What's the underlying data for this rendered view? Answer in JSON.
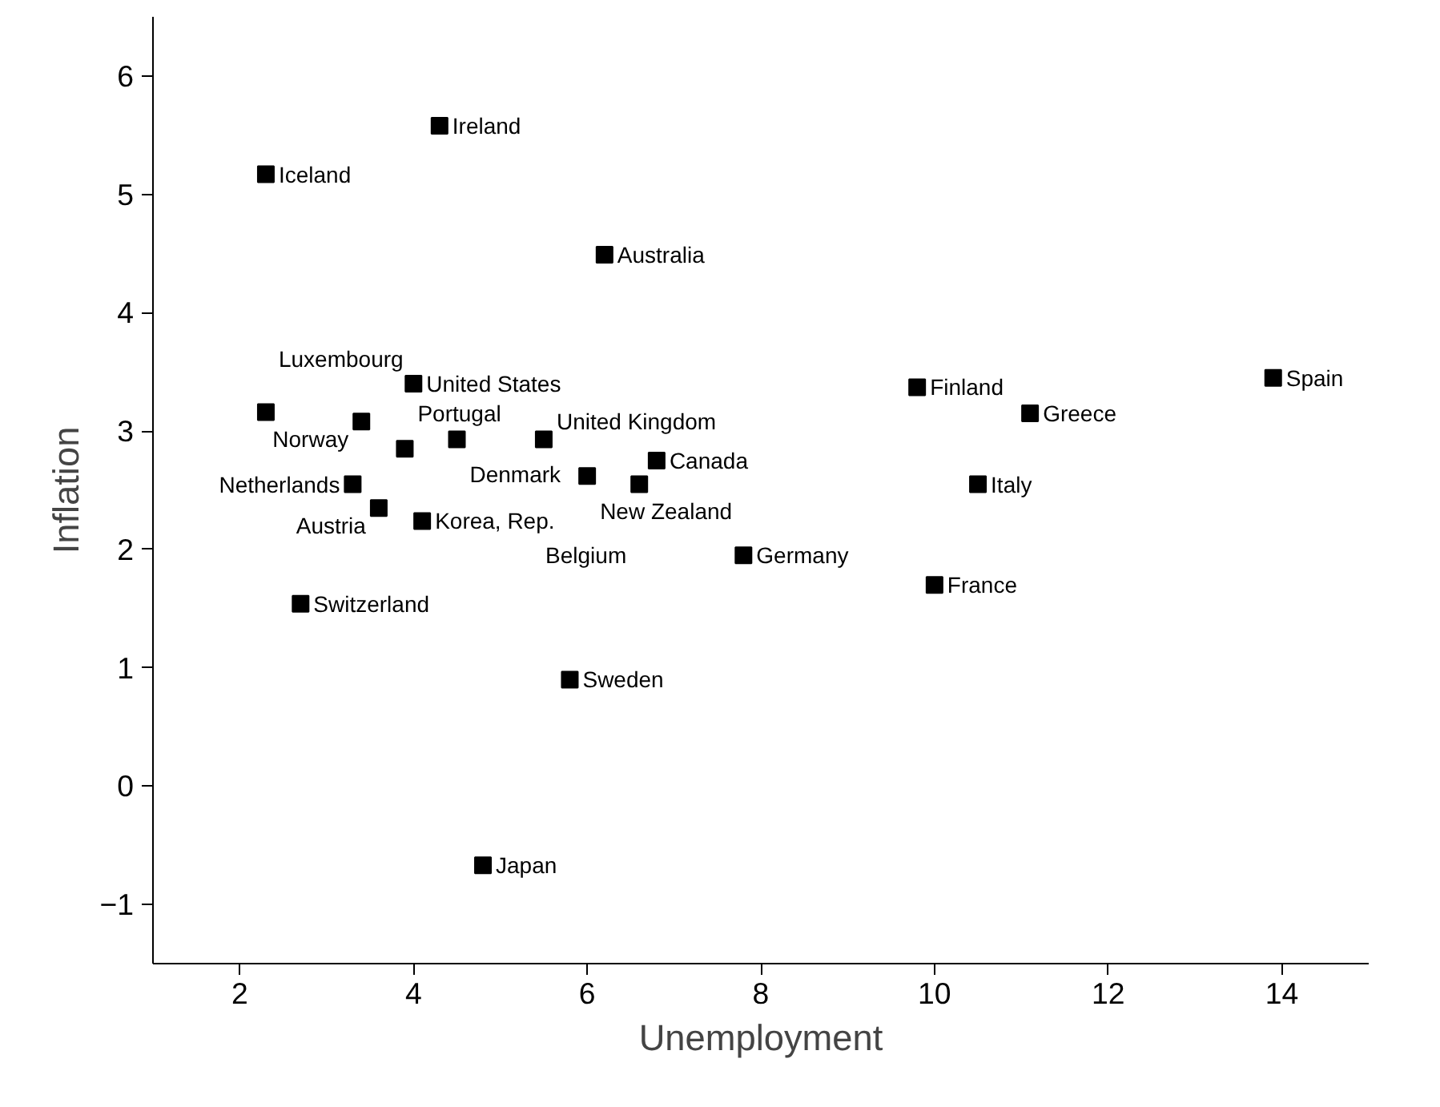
{
  "chart_data": {
    "type": "scatter",
    "xlabel": "Unemployment",
    "ylabel": "Inflation",
    "x": [
      4.3,
      2.3,
      6.2,
      4.0,
      2.3,
      3.4,
      4.5,
      5.5,
      3.9,
      6.8,
      6.0,
      6.6,
      3.3,
      3.6,
      4.1,
      9.8,
      11.1,
      13.9,
      10.5,
      7.8,
      10.0,
      2.7,
      5.8,
      4.8
    ],
    "series": [
      {
        "color": "#000000",
        "values": [
          5.58,
          5.17,
          4.49,
          3.4,
          3.16,
          3.08,
          2.93,
          2.93,
          2.85,
          2.75,
          2.62,
          2.55,
          2.55,
          2.35,
          2.24,
          3.37,
          3.15,
          3.45,
          2.55,
          1.95,
          1.7,
          1.54,
          0.9,
          -0.67
        ]
      }
    ],
    "annotations": [
      {
        "text": "Ireland",
        "x": 4.3,
        "y": 5.58
      },
      {
        "text": "Iceland",
        "x": 2.3,
        "y": 5.17
      },
      {
        "text": "Australia",
        "x": 6.2,
        "y": 4.49
      },
      {
        "text": "United States",
        "x": 4.0,
        "y": 3.4
      },
      {
        "text": "Luxembourg",
        "x": 2.3,
        "y": 3.16
      },
      {
        "text": "Norway",
        "x": 3.4,
        "y": 3.08
      },
      {
        "text": "Denmark",
        "x": 4.5,
        "y": 2.93
      },
      {
        "text": "United Kingdom",
        "x": 5.5,
        "y": 2.93
      },
      {
        "text": "Portugal",
        "x": 3.9,
        "y": 2.85
      },
      {
        "text": "Canada",
        "x": 6.8,
        "y": 2.75
      },
      {
        "text": "New Zealand",
        "x": 6.0,
        "y": 2.62
      },
      {
        "text": "Belgium",
        "x": 6.6,
        "y": 2.55
      },
      {
        "text": "Netherlands",
        "x": 3.3,
        "y": 2.55
      },
      {
        "text": "Austria",
        "x": 3.6,
        "y": 2.35
      },
      {
        "text": "Korea, Rep.",
        "x": 4.1,
        "y": 2.24
      },
      {
        "text": "Finland",
        "x": 9.8,
        "y": 3.37
      },
      {
        "text": "Greece",
        "x": 11.1,
        "y": 3.15
      },
      {
        "text": "Spain",
        "x": 13.9,
        "y": 3.45
      },
      {
        "text": "Italy",
        "x": 10.5,
        "y": 2.55
      },
      {
        "text": "Germany",
        "x": 7.8,
        "y": 1.95
      },
      {
        "text": "France",
        "x": 10.0,
        "y": 1.7
      },
      {
        "text": "Switzerland",
        "x": 2.7,
        "y": 1.54
      },
      {
        "text": "Sweden",
        "x": 5.8,
        "y": 0.9
      },
      {
        "text": "Japan",
        "x": 4.8,
        "y": -0.67
      }
    ],
    "xlim": [
      1,
      15
    ],
    "ylim": [
      -1.5,
      6.5
    ],
    "xticks": [
      2,
      4,
      6,
      8,
      10,
      12,
      14
    ],
    "yticks": [
      -1,
      0,
      1,
      2,
      3,
      4,
      5,
      6
    ],
    "marker": "square"
  }
}
